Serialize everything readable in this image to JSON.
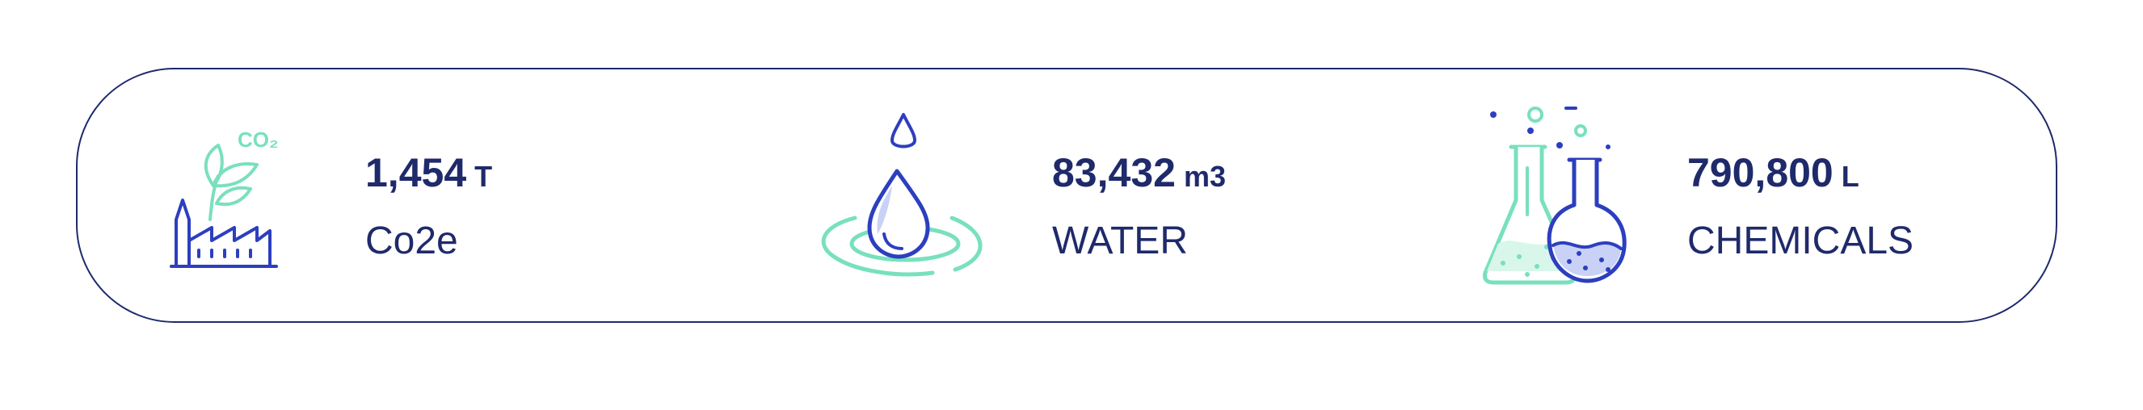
{
  "stats": [
    {
      "icon": "factory-leaf-co2-icon",
      "icon_text": "CO₂",
      "value": "1,454",
      "unit": "T",
      "label": "Co2e"
    },
    {
      "icon": "water-drop-ripple-icon",
      "value": "83,432",
      "unit": "m3",
      "label": "WATER"
    },
    {
      "icon": "chemical-flasks-icon",
      "value": "790,800",
      "unit": "L",
      "label": "CHEMICALS"
    }
  ],
  "colors": {
    "navy": "#1f2a6b",
    "blue": "#2c3fbf",
    "mint": "#79e0bd",
    "light_blue": "#c9d1f6"
  }
}
